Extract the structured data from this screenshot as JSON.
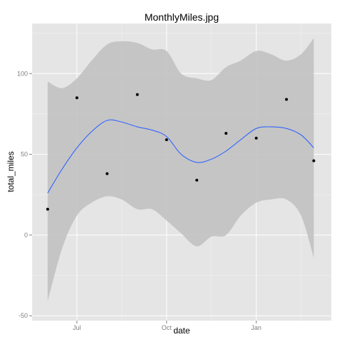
{
  "chart_data": {
    "type": "scatter",
    "title": "MonthlyMiles.jpg",
    "xlabel": "date",
    "ylabel": "total_miles",
    "x_tick_labels": [
      "Jul",
      "Oct",
      "Jan"
    ],
    "x_ticks": [
      "2013-07-01",
      "2013-10-01",
      "2014-01-01"
    ],
    "xlim": [
      "2013-05-16",
      "2014-03-19"
    ],
    "y_tick_labels": [
      "-50",
      "0",
      "50",
      "100"
    ],
    "y_ticks": [
      -50,
      0,
      50,
      100
    ],
    "ylim": [
      -53,
      131
    ],
    "grid": true,
    "colors": {
      "panel": "#e5e5e5",
      "grid": "#ffffff",
      "ribbon": "#bfbfbf",
      "smooth_line": "#3366ff",
      "points": "#000000"
    },
    "points": [
      {
        "x": "2013-06-01",
        "y": 16
      },
      {
        "x": "2013-07-01",
        "y": 85
      },
      {
        "x": "2013-08-01",
        "y": 38
      },
      {
        "x": "2013-09-01",
        "y": 87
      },
      {
        "x": "2013-10-01",
        "y": 59
      },
      {
        "x": "2013-11-01",
        "y": 34
      },
      {
        "x": "2013-12-01",
        "y": 63
      },
      {
        "x": "2014-01-01",
        "y": 60
      },
      {
        "x": "2014-02-01",
        "y": 84
      },
      {
        "x": "2014-03-01",
        "y": 46
      }
    ],
    "smooth": [
      {
        "x": "2013-06-01",
        "y": 26,
        "lo": -41,
        "hi": 95
      },
      {
        "x": "2013-06-16",
        "y": 41,
        "lo": -8,
        "hi": 91
      },
      {
        "x": "2013-07-01",
        "y": 54,
        "lo": 12,
        "hi": 97
      },
      {
        "x": "2013-07-16",
        "y": 64,
        "lo": 20,
        "hi": 108
      },
      {
        "x": "2013-08-01",
        "y": 71,
        "lo": 24,
        "hi": 118
      },
      {
        "x": "2013-08-16",
        "y": 70,
        "lo": 22,
        "hi": 120
      },
      {
        "x": "2013-09-01",
        "y": 67,
        "lo": 16,
        "hi": 119
      },
      {
        "x": "2013-09-16",
        "y": 65,
        "lo": 16,
        "hi": 115
      },
      {
        "x": "2013-10-01",
        "y": 61,
        "lo": 9,
        "hi": 114
      },
      {
        "x": "2013-10-16",
        "y": 50,
        "lo": 1,
        "hi": 100
      },
      {
        "x": "2013-11-01",
        "y": 45,
        "lo": -7,
        "hi": 97
      },
      {
        "x": "2013-11-16",
        "y": 47,
        "lo": -1,
        "hi": 96
      },
      {
        "x": "2013-12-01",
        "y": 52,
        "lo": 0,
        "hi": 104
      },
      {
        "x": "2013-12-16",
        "y": 59,
        "lo": 12,
        "hi": 108
      },
      {
        "x": "2014-01-01",
        "y": 66,
        "lo": 20,
        "hi": 114
      },
      {
        "x": "2014-01-16",
        "y": 67,
        "lo": 22,
        "hi": 112
      },
      {
        "x": "2014-02-01",
        "y": 66,
        "lo": 22,
        "hi": 108
      },
      {
        "x": "2014-02-16",
        "y": 62,
        "lo": 12,
        "hi": 112
      },
      {
        "x": "2014-03-01",
        "y": 54,
        "lo": -14,
        "hi": 122
      }
    ]
  }
}
